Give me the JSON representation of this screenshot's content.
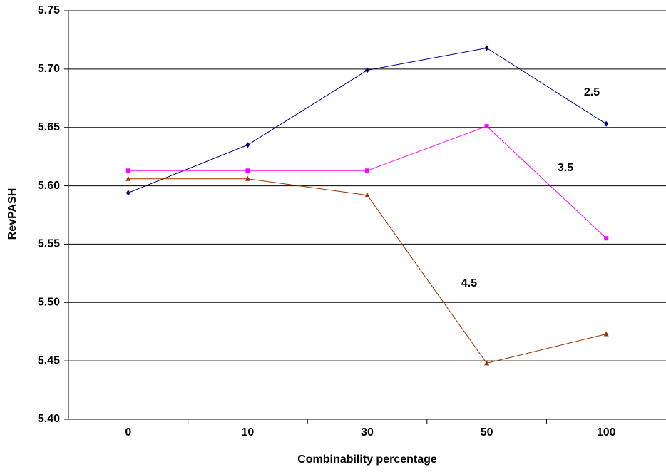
{
  "chart_data": {
    "type": "line",
    "x_label": "Combinability percentage",
    "y_label": "RevPASH",
    "categories": [
      "0",
      "10",
      "30",
      "50",
      "100"
    ],
    "series": [
      {
        "name": "2.5",
        "color": "#000080",
        "marker": "diamond",
        "values": [
          5.594,
          5.635,
          5.699,
          5.718,
          5.653
        ]
      },
      {
        "name": "3.5",
        "color": "#ff00ff",
        "marker": "square",
        "values": [
          5.613,
          5.613,
          5.613,
          5.651,
          5.555
        ]
      },
      {
        "name": "4.5",
        "color": "#993300",
        "marker": "triangle",
        "values": [
          5.606,
          5.606,
          5.592,
          5.448,
          5.473
        ]
      }
    ],
    "ylim": [
      5.4,
      5.75
    ],
    "yticks": [
      {
        "value": 5.4,
        "label": "5.40"
      },
      {
        "value": 5.45,
        "label": "5.45"
      },
      {
        "value": 5.5,
        "label": "5.50"
      },
      {
        "value": 5.55,
        "label": "5.55"
      },
      {
        "value": 5.6,
        "label": "5.60"
      },
      {
        "value": 5.65,
        "label": "5.65"
      },
      {
        "value": 5.7,
        "label": "5.70"
      },
      {
        "value": 5.75,
        "label": "5.75"
      }
    ],
    "grid": true
  }
}
